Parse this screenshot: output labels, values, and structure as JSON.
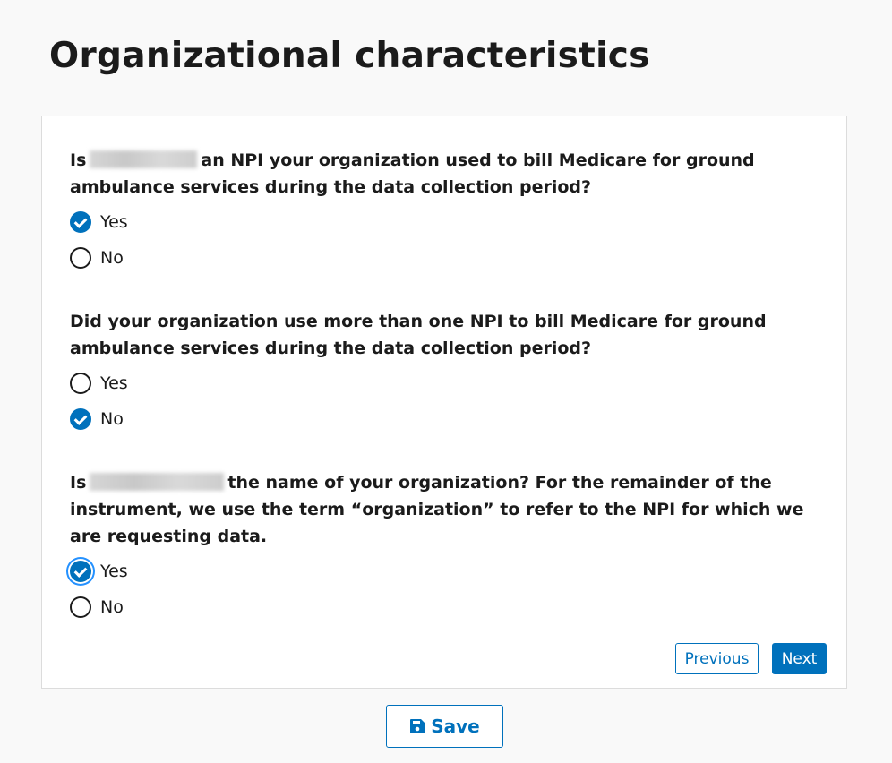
{
  "page": {
    "title": "Organizational characteristics"
  },
  "questions": [
    {
      "prefix": "Is",
      "suffix": "an NPI your organization used to bill Medicare for ground ambulance services during the data collection period?",
      "options": [
        "Yes",
        "No"
      ],
      "selected": "Yes"
    },
    {
      "text_a": "Did your organization use ",
      "text_bold": "more than one",
      "text_b": " NPI to bill Medicare for ground ambulance services during the data collection period?",
      "options": [
        "Yes",
        "No"
      ],
      "selected": "No"
    },
    {
      "prefix": "Is",
      "suffix": "the name of your organization? For the remainder of the instrument, we use the term “organization” to refer to the NPI for which we are requesting data.",
      "options": [
        "Yes",
        "No"
      ],
      "selected": "Yes"
    }
  ],
  "nav": {
    "previous": "Previous",
    "next": "Next",
    "save": "Save"
  },
  "colors": {
    "accent": "#0071bc"
  }
}
